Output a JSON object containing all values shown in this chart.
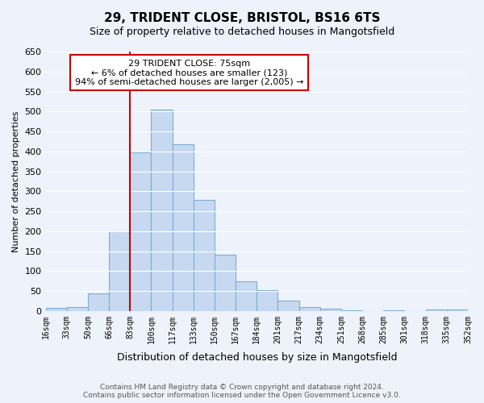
{
  "title1": "29, TRIDENT CLOSE, BRISTOL, BS16 6TS",
  "title2": "Size of property relative to detached houses in Mangotsfield",
  "xlabel": "Distribution of detached houses by size in Mangotsfield",
  "ylabel": "Number of detached properties",
  "bin_labels": [
    "16sqm",
    "33sqm",
    "50sqm",
    "66sqm",
    "83sqm",
    "100sqm",
    "117sqm",
    "133sqm",
    "150sqm",
    "167sqm",
    "184sqm",
    "201sqm",
    "217sqm",
    "234sqm",
    "251sqm",
    "268sqm",
    "285sqm",
    "301sqm",
    "318sqm",
    "335sqm",
    "352sqm"
  ],
  "bar_values": [
    8,
    10,
    45,
    200,
    398,
    505,
    418,
    278,
    140,
    75,
    52,
    25,
    10,
    5,
    2,
    0,
    2,
    0,
    4,
    3
  ],
  "bar_color": "#c6d9f1",
  "bar_edge_color": "#7aaed6",
  "marker_tick_index": 4,
  "marker_color": "#cc0000",
  "annotation_title": "29 TRIDENT CLOSE: 75sqm",
  "annotation_line1": "← 6% of detached houses are smaller (123)",
  "annotation_line2": "94% of semi-detached houses are larger (2,005) →",
  "annotation_box_color": "#ffffff",
  "annotation_box_edge": "#cc0000",
  "ylim": [
    0,
    650
  ],
  "yticks": [
    0,
    50,
    100,
    150,
    200,
    250,
    300,
    350,
    400,
    450,
    500,
    550,
    600,
    650
  ],
  "footer1": "Contains HM Land Registry data © Crown copyright and database right 2024.",
  "footer2": "Contains public sector information licensed under the Open Government Licence v3.0.",
  "bg_color": "#eef2fa"
}
